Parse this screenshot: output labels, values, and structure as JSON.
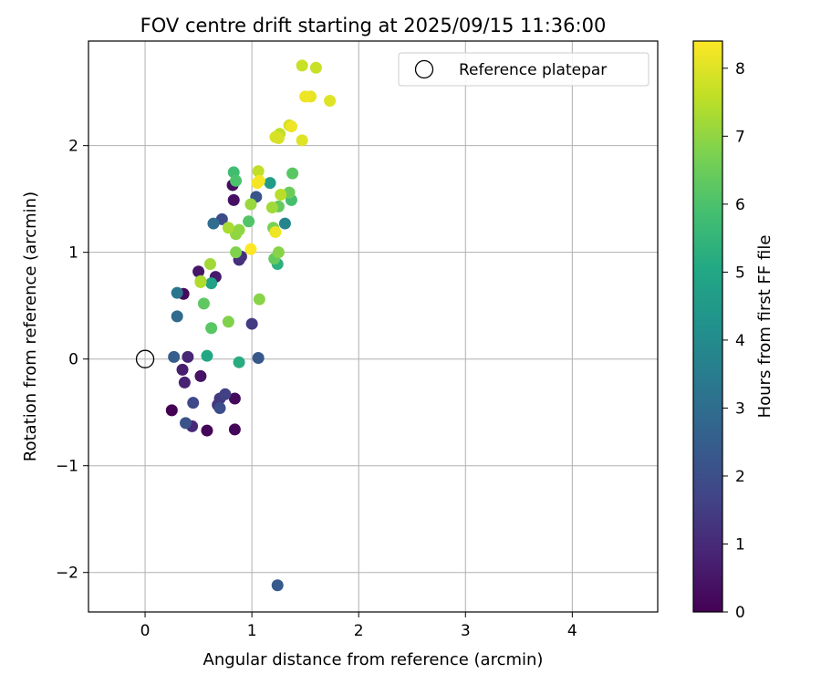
{
  "chart_data": {
    "type": "scatter",
    "title": "FOV centre drift starting at 2025/09/15 11:36:00",
    "xlabel": "Angular distance from reference (arcmin)",
    "ylabel": "Rotation from reference (arcmin)",
    "xlim": [
      -0.53,
      4.8
    ],
    "ylim": [
      -2.37,
      2.98
    ],
    "xticks": [
      0,
      1,
      2,
      3,
      4
    ],
    "xtick_labels": [
      "0",
      "1",
      "2",
      "3",
      "4"
    ],
    "yticks": [
      -2,
      -1,
      0,
      1,
      2
    ],
    "ytick_labels": [
      "−2",
      "−1",
      "0",
      "1",
      "2"
    ],
    "grid": true,
    "legend": {
      "placement": "top-right",
      "entries": [
        "Reference platepar"
      ]
    },
    "reference_point": {
      "x": 0,
      "y": 0,
      "label": "Reference platepar"
    },
    "colorbar": {
      "label": "Hours from first FF file",
      "colormap": "viridis",
      "range": [
        0,
        8.4
      ],
      "ticks": [
        0,
        1,
        2,
        3,
        4,
        5,
        6,
        7,
        8
      ],
      "tick_labels": [
        "0",
        "1",
        "2",
        "3",
        "4",
        "5",
        "6",
        "7",
        "8"
      ]
    },
    "points": [
      {
        "x": 0.25,
        "y": -0.48,
        "t": 0.0
      },
      {
        "x": 0.58,
        "y": -0.67,
        "t": 0.1
      },
      {
        "x": 0.84,
        "y": -0.66,
        "t": 0.15
      },
      {
        "x": 0.84,
        "y": -0.37,
        "t": 0.2
      },
      {
        "x": 0.36,
        "y": 0.61,
        "t": 0.2
      },
      {
        "x": 0.82,
        "y": 1.63,
        "t": 0.3
      },
      {
        "x": 0.83,
        "y": 1.49,
        "t": 0.35
      },
      {
        "x": 0.52,
        "y": -0.16,
        "t": 0.4
      },
      {
        "x": 0.5,
        "y": 0.82,
        "t": 0.5
      },
      {
        "x": 0.66,
        "y": 0.77,
        "t": 0.6
      },
      {
        "x": 0.35,
        "y": -0.1,
        "t": 0.7
      },
      {
        "x": 0.37,
        "y": -0.22,
        "t": 0.8
      },
      {
        "x": 0.4,
        "y": 0.02,
        "t": 0.9
      },
      {
        "x": 0.44,
        "y": -0.63,
        "t": 1.0
      },
      {
        "x": 0.88,
        "y": 0.93,
        "t": 1.1
      },
      {
        "x": 0.9,
        "y": 0.96,
        "t": 1.2
      },
      {
        "x": 0.68,
        "y": -0.43,
        "t": 1.3
      },
      {
        "x": 0.7,
        "y": -0.37,
        "t": 1.4
      },
      {
        "x": 1.0,
        "y": 0.33,
        "t": 1.5
      },
      {
        "x": 0.75,
        "y": -0.33,
        "t": 1.6
      },
      {
        "x": 0.45,
        "y": -0.41,
        "t": 1.8
      },
      {
        "x": 0.72,
        "y": 1.31,
        "t": 1.9
      },
      {
        "x": 0.7,
        "y": -0.46,
        "t": 2.0
      },
      {
        "x": 0.38,
        "y": -0.6,
        "t": 2.1
      },
      {
        "x": 1.04,
        "y": 1.52,
        "t": 2.2
      },
      {
        "x": 1.06,
        "y": 0.01,
        "t": 2.3
      },
      {
        "x": 1.24,
        "y": -2.12,
        "t": 2.4
      },
      {
        "x": 0.27,
        "y": 0.02,
        "t": 2.5
      },
      {
        "x": 0.3,
        "y": 0.4,
        "t": 2.9
      },
      {
        "x": 0.64,
        "y": 1.27,
        "t": 3.0
      },
      {
        "x": 0.3,
        "y": 0.62,
        "t": 3.3
      },
      {
        "x": 1.31,
        "y": 1.27,
        "t": 3.8
      },
      {
        "x": 1.17,
        "y": 1.65,
        "t": 4.6
      },
      {
        "x": 0.62,
        "y": 0.71,
        "t": 4.8
      },
      {
        "x": 1.24,
        "y": 0.89,
        "t": 5.3
      },
      {
        "x": 0.58,
        "y": 0.03,
        "t": 5.0
      },
      {
        "x": 0.88,
        "y": -0.03,
        "t": 5.2
      },
      {
        "x": 0.83,
        "y": 1.75,
        "t": 5.8
      },
      {
        "x": 1.37,
        "y": 1.49,
        "t": 5.9
      },
      {
        "x": 0.85,
        "y": 1.67,
        "t": 6.0
      },
      {
        "x": 0.97,
        "y": 1.29,
        "t": 6.1
      },
      {
        "x": 1.38,
        "y": 1.74,
        "t": 6.2
      },
      {
        "x": 0.62,
        "y": 0.29,
        "t": 6.2
      },
      {
        "x": 0.55,
        "y": 0.52,
        "t": 6.3
      },
      {
        "x": 1.21,
        "y": 0.94,
        "t": 6.4
      },
      {
        "x": 1.25,
        "y": 1.43,
        "t": 6.4
      },
      {
        "x": 1.35,
        "y": 1.56,
        "t": 6.5
      },
      {
        "x": 1.2,
        "y": 1.23,
        "t": 6.7
      },
      {
        "x": 0.78,
        "y": 0.35,
        "t": 6.8
      },
      {
        "x": 0.85,
        "y": 1.0,
        "t": 6.8
      },
      {
        "x": 1.25,
        "y": 1.0,
        "t": 6.9
      },
      {
        "x": 1.07,
        "y": 0.56,
        "t": 6.9
      },
      {
        "x": 0.85,
        "y": 1.17,
        "t": 7.0
      },
      {
        "x": 0.88,
        "y": 1.21,
        "t": 7.0
      },
      {
        "x": 0.52,
        "y": 0.73,
        "t": 7.1
      },
      {
        "x": 0.99,
        "y": 1.45,
        "t": 7.1
      },
      {
        "x": 0.61,
        "y": 0.89,
        "t": 7.2
      },
      {
        "x": 1.19,
        "y": 1.42,
        "t": 7.2
      },
      {
        "x": 0.78,
        "y": 1.23,
        "t": 7.3
      },
      {
        "x": 0.52,
        "y": 0.72,
        "t": 7.4
      },
      {
        "x": 1.27,
        "y": 1.54,
        "t": 7.5
      },
      {
        "x": 1.06,
        "y": 1.76,
        "t": 7.6
      },
      {
        "x": 1.26,
        "y": 2.11,
        "t": 7.6
      },
      {
        "x": 1.47,
        "y": 2.75,
        "t": 7.7
      },
      {
        "x": 1.6,
        "y": 2.73,
        "t": 7.7
      },
      {
        "x": 1.35,
        "y": 2.19,
        "t": 7.8
      },
      {
        "x": 1.25,
        "y": 2.07,
        "t": 7.9
      },
      {
        "x": 1.22,
        "y": 2.08,
        "t": 7.9
      },
      {
        "x": 1.47,
        "y": 2.05,
        "t": 8.0
      },
      {
        "x": 1.73,
        "y": 2.42,
        "t": 8.0
      },
      {
        "x": 1.55,
        "y": 2.46,
        "t": 8.1
      },
      {
        "x": 1.5,
        "y": 2.46,
        "t": 8.2
      },
      {
        "x": 1.37,
        "y": 2.18,
        "t": 8.2
      },
      {
        "x": 1.22,
        "y": 1.19,
        "t": 8.2
      },
      {
        "x": 1.05,
        "y": 1.65,
        "t": 8.3
      },
      {
        "x": 1.07,
        "y": 1.67,
        "t": 8.3
      },
      {
        "x": 0.99,
        "y": 1.03,
        "t": 8.4
      }
    ]
  }
}
